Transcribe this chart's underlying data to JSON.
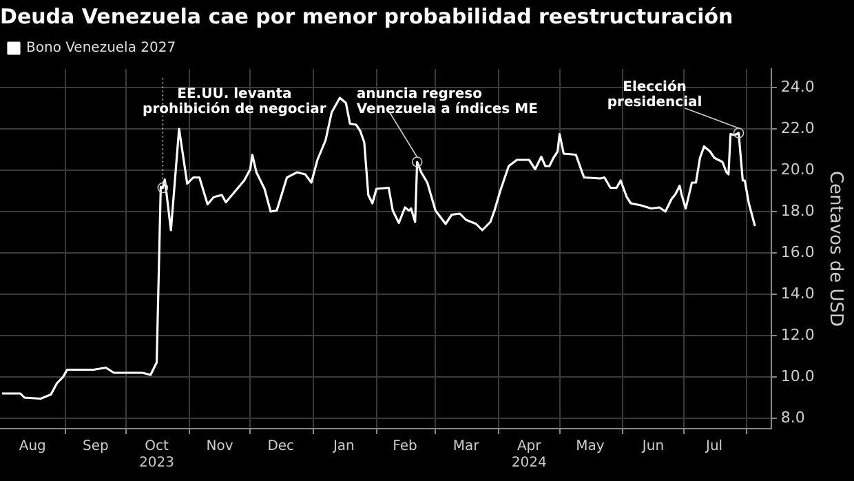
{
  "chart_data": {
    "type": "line",
    "title": "Deuda Venezuela cae por menor probabilidad reestructuración",
    "ylabel": "Centavos de USD",
    "legend": "top left",
    "grid": true,
    "marker": "none",
    "line_style": "solid",
    "xlim": [
      "2023-07-31",
      "2024-08-13"
    ],
    "ylim": [
      7.5,
      24.9
    ],
    "yticks": [
      {
        "value": 8,
        "label": "8.0"
      },
      {
        "value": 10,
        "label": "10.0"
      },
      {
        "value": 12,
        "label": "12.0"
      },
      {
        "value": 14,
        "label": "14.0"
      },
      {
        "value": 16,
        "label": "16.0"
      },
      {
        "value": 18,
        "label": "18.0"
      },
      {
        "value": 20,
        "label": "20.0"
      },
      {
        "value": 22,
        "label": "22.0"
      },
      {
        "value": 24,
        "label": "24.0"
      }
    ],
    "xticks": [
      {
        "value": "2023-08-16",
        "label": "Aug"
      },
      {
        "value": "2023-09-01",
        "label": null
      },
      {
        "value": "2023-09-16",
        "label": "Sep"
      },
      {
        "value": "2023-10-01",
        "label": null
      },
      {
        "value": "2023-10-16",
        "label": "Oct\n2023"
      },
      {
        "value": "2023-11-01",
        "label": null
      },
      {
        "value": "2023-11-16",
        "label": "Nov"
      },
      {
        "value": "2023-12-01",
        "label": null
      },
      {
        "value": "2023-12-16",
        "label": "Dec"
      },
      {
        "value": "2024-01-01",
        "label": null
      },
      {
        "value": "2024-01-16",
        "label": "Jan"
      },
      {
        "value": "2024-02-01",
        "label": null
      },
      {
        "value": "2024-02-15",
        "label": "Feb"
      },
      {
        "value": "2024-03-01",
        "label": null
      },
      {
        "value": "2024-03-16",
        "label": "Mar"
      },
      {
        "value": "2024-04-01",
        "label": null
      },
      {
        "value": "2024-04-16",
        "label": "Apr\n2024"
      },
      {
        "value": "2024-05-01",
        "label": null
      },
      {
        "value": "2024-05-16",
        "label": "May"
      },
      {
        "value": "2024-06-01",
        "label": null
      },
      {
        "value": "2024-06-16",
        "label": "Jun"
      },
      {
        "value": "2024-07-01",
        "label": null
      },
      {
        "value": "2024-07-16",
        "label": "Jul"
      },
      {
        "value": "2024-08-01",
        "label": null
      }
    ],
    "annotations": [
      {
        "text": "EE.UU. levanta\nprohibición de negociar",
        "x": "2023-10-19",
        "y": 19.15
      },
      {
        "text": "anuncia regreso\nVenezuela a índices ME",
        "x": "2024-02-21",
        "y": 20.4
      },
      {
        "text": "Elección\npresidencial",
        "x": "2024-07-28",
        "y": 21.8
      }
    ],
    "series": [
      {
        "name": "Bono Venezuela 2027",
        "color": "#ffffff",
        "x": [
          "2023-08-01",
          "2023-08-10",
          "2023-08-12",
          "2023-08-20",
          "2023-08-25",
          "2023-08-28",
          "2023-08-31",
          "2023-09-02",
          "2023-09-15",
          "2023-09-21",
          "2023-09-25",
          "2023-10-09",
          "2023-10-13",
          "2023-10-16",
          "2023-10-18",
          "2023-10-19",
          "2023-10-20",
          "2023-10-23",
          "2023-10-27",
          "2023-10-31",
          "2023-11-03",
          "2023-11-06",
          "2023-11-10",
          "2023-11-13",
          "2023-11-17",
          "2023-11-19",
          "2023-11-22",
          "2023-11-28",
          "2023-12-01",
          "2023-12-02",
          "2023-12-04",
          "2023-12-08",
          "2023-12-11",
          "2023-12-14",
          "2023-12-19",
          "2023-12-24",
          "2023-12-28",
          "2023-12-31",
          "2024-01-03",
          "2024-01-07",
          "2024-01-10",
          "2024-01-14",
          "2024-01-17",
          "2024-01-19",
          "2024-01-22",
          "2024-01-24",
          "2024-01-26",
          "2024-01-28",
          "2024-01-30",
          "2024-02-01",
          "2024-02-07",
          "2024-02-09",
          "2024-02-12",
          "2024-02-15",
          "2024-02-17",
          "2024-02-18",
          "2024-02-20",
          "2024-02-21",
          "2024-02-23",
          "2024-02-26",
          "2024-03-01",
          "2024-03-06",
          "2024-03-09",
          "2024-03-13",
          "2024-03-16",
          "2024-03-21",
          "2024-03-24",
          "2024-03-28",
          "2024-03-30",
          "2024-04-02",
          "2024-04-06",
          "2024-04-10",
          "2024-04-16",
          "2024-04-19",
          "2024-04-22",
          "2024-04-24",
          "2024-04-26",
          "2024-04-28",
          "2024-04-30",
          "2024-05-01",
          "2024-05-03",
          "2024-05-09",
          "2024-05-13",
          "2024-05-21",
          "2024-05-23",
          "2024-05-26",
          "2024-05-29",
          "2024-05-31",
          "2024-06-03",
          "2024-06-05",
          "2024-06-10",
          "2024-06-15",
          "2024-06-19",
          "2024-06-22",
          "2024-06-25",
          "2024-06-27",
          "2024-06-29",
          "2024-06-30",
          "2024-07-02",
          "2024-07-05",
          "2024-07-07",
          "2024-07-09",
          "2024-07-11",
          "2024-07-14",
          "2024-07-16",
          "2024-07-20",
          "2024-07-22",
          "2024-07-23",
          "2024-07-24",
          "2024-07-26",
          "2024-07-28",
          "2024-07-30",
          "2024-07-31",
          "2024-08-02",
          "2024-08-05"
        ],
        "values": [
          9.2,
          9.2,
          9.0,
          8.95,
          9.15,
          9.7,
          10.0,
          10.35,
          10.35,
          10.45,
          10.2,
          10.2,
          10.1,
          10.7,
          19.2,
          19.15,
          19.55,
          17.1,
          22.0,
          19.35,
          19.65,
          19.65,
          18.35,
          18.7,
          18.8,
          18.45,
          18.8,
          19.5,
          20.05,
          20.75,
          19.9,
          19.1,
          18.0,
          18.05,
          19.65,
          19.9,
          19.8,
          19.4,
          20.5,
          21.45,
          22.8,
          23.5,
          23.25,
          22.25,
          22.2,
          21.9,
          21.35,
          18.8,
          18.4,
          19.1,
          19.15,
          18.05,
          17.45,
          18.2,
          18.05,
          18.15,
          17.5,
          20.4,
          19.9,
          19.4,
          18.05,
          17.4,
          17.85,
          17.9,
          17.6,
          17.4,
          17.1,
          17.5,
          18.05,
          19.05,
          20.2,
          20.5,
          20.5,
          20.05,
          20.65,
          20.2,
          20.2,
          20.6,
          20.9,
          21.75,
          20.8,
          20.75,
          19.65,
          19.6,
          19.65,
          19.15,
          19.15,
          19.5,
          18.7,
          18.4,
          18.3,
          18.15,
          18.2,
          18.0,
          18.6,
          18.85,
          19.25,
          18.8,
          18.15,
          19.4,
          19.4,
          20.6,
          21.15,
          20.9,
          20.6,
          20.4,
          19.9,
          19.8,
          21.75,
          21.7,
          21.8,
          19.5,
          19.5,
          18.4,
          17.3
        ]
      }
    ]
  }
}
